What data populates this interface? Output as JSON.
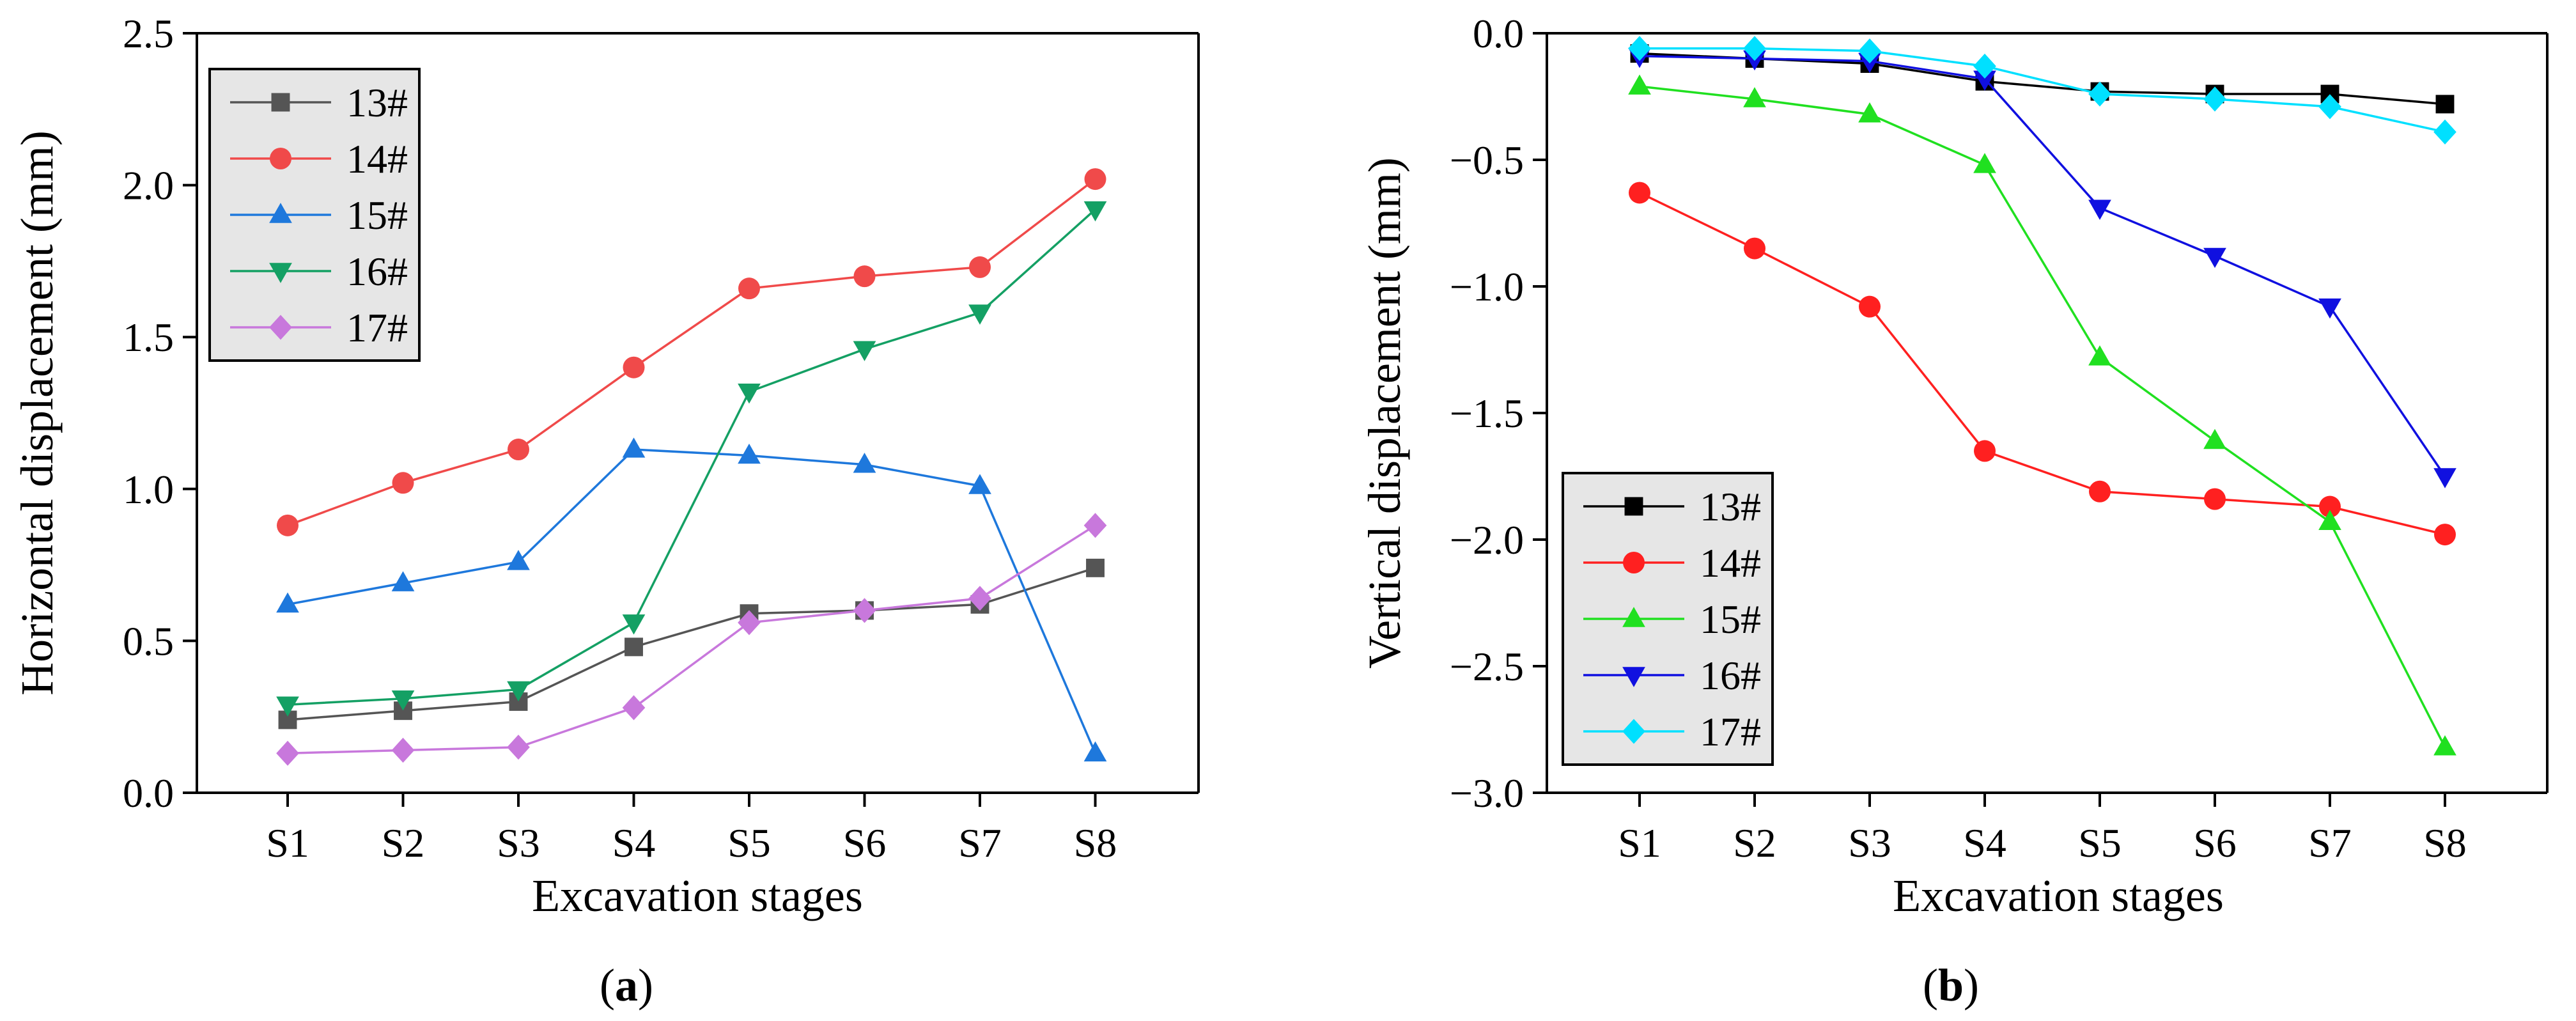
{
  "figure": {
    "panel_labels": [
      {
        "open": "(",
        "letter": "a",
        "close": ")"
      },
      {
        "open": "(",
        "letter": "b",
        "close": ")"
      }
    ]
  },
  "chart_data": [
    {
      "type": "line",
      "panel": "a",
      "title": "",
      "xlabel": "Excavation stages",
      "ylabel": "Horizontal displacement (mm)",
      "categories": [
        "S1",
        "S2",
        "S3",
        "S4",
        "S5",
        "S6",
        "S7",
        "S8"
      ],
      "ylim": [
        0.0,
        2.5
      ],
      "yticks": [
        "0.0",
        "0.5",
        "1.0",
        "1.5",
        "2.0",
        "2.5"
      ],
      "ytick_values": [
        0.0,
        0.5,
        1.0,
        1.5,
        2.0,
        2.5
      ],
      "grid": false,
      "legend_position": "top-left",
      "series": [
        {
          "name": "13#",
          "color": "#555555",
          "marker": "square",
          "values": [
            0.24,
            0.27,
            0.3,
            0.48,
            0.59,
            0.6,
            0.62,
            0.74
          ]
        },
        {
          "name": "14#",
          "color": "#f04a4a",
          "marker": "circle",
          "values": [
            0.88,
            1.02,
            1.13,
            1.4,
            1.66,
            1.7,
            1.73,
            2.02
          ]
        },
        {
          "name": "15#",
          "color": "#1e78dc",
          "marker": "triangle-up",
          "values": [
            0.62,
            0.69,
            0.76,
            1.13,
            1.11,
            1.08,
            1.01,
            0.13
          ]
        },
        {
          "name": "16#",
          "color": "#14a064",
          "marker": "triangle-down",
          "values": [
            0.29,
            0.31,
            0.34,
            0.56,
            1.32,
            1.46,
            1.58,
            1.92
          ]
        },
        {
          "name": "17#",
          "color": "#c878dc",
          "marker": "diamond",
          "values": [
            0.13,
            0.14,
            0.15,
            0.28,
            0.56,
            0.6,
            0.64,
            0.88
          ]
        }
      ]
    },
    {
      "type": "line",
      "panel": "b",
      "title": "",
      "xlabel": "Excavation stages",
      "ylabel": "Vertical displacement (mm)",
      "categories": [
        "S1",
        "S2",
        "S3",
        "S4",
        "S5",
        "S6",
        "S7",
        "S8"
      ],
      "ylim": [
        -3.0,
        0.0
      ],
      "yticks": [
        "−3.0",
        "−2.5",
        "−2.0",
        "−1.5",
        "−1.0",
        "−0.5",
        "0.0"
      ],
      "ytick_values": [
        -3.0,
        -2.5,
        -2.0,
        -1.5,
        -1.0,
        -0.5,
        0.0
      ],
      "grid": false,
      "legend_position": "bottom-left",
      "series": [
        {
          "name": "13#",
          "color": "#000000",
          "marker": "square",
          "values": [
            -0.08,
            -0.1,
            -0.12,
            -0.19,
            -0.23,
            -0.24,
            -0.24,
            -0.28
          ]
        },
        {
          "name": "14#",
          "color": "#ff2020",
          "marker": "circle",
          "values": [
            -0.63,
            -0.85,
            -1.08,
            -1.65,
            -1.81,
            -1.84,
            -1.87,
            -1.98
          ]
        },
        {
          "name": "15#",
          "color": "#20e020",
          "marker": "triangle-up",
          "values": [
            -0.21,
            -0.26,
            -0.32,
            -0.52,
            -1.28,
            -1.61,
            -1.93,
            -2.82
          ]
        },
        {
          "name": "16#",
          "color": "#1010e0",
          "marker": "triangle-down",
          "values": [
            -0.09,
            -0.1,
            -0.11,
            -0.18,
            -0.69,
            -0.88,
            -1.08,
            -1.75
          ]
        },
        {
          "name": "17#",
          "color": "#00e0ff",
          "marker": "diamond",
          "values": [
            -0.06,
            -0.06,
            -0.07,
            -0.13,
            -0.24,
            -0.26,
            -0.29,
            -0.39
          ]
        }
      ]
    }
  ]
}
